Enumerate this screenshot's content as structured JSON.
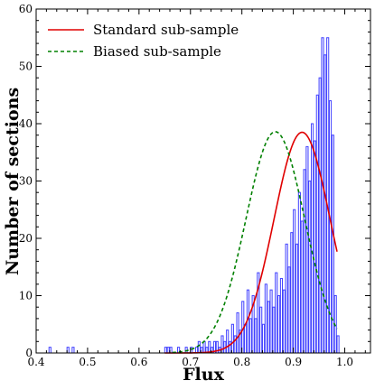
{
  "chart_data": {
    "type": "line",
    "title": "",
    "xlabel": "Flux",
    "ylabel": "Number of sections",
    "xlim": [
      0.4,
      1.05
    ],
    "ylim": [
      0,
      60
    ],
    "xticks": [
      0.4,
      0.5,
      0.6,
      0.7,
      0.8,
      0.9,
      1.0
    ],
    "xtick_labels": [
      "0.4",
      "0.5",
      "0.6",
      "0.7",
      "0.8",
      "0.9",
      "1.0"
    ],
    "yticks": [
      0,
      10,
      20,
      30,
      40,
      50,
      60
    ],
    "ytick_labels": [
      "0",
      "10",
      "20",
      "30",
      "40",
      "50",
      "60"
    ],
    "grid": false,
    "legend_position": "top-left",
    "legend": [
      {
        "label": "Standard sub-sample",
        "color": "#e00000",
        "style": "solid"
      },
      {
        "label": "Biased sub-sample",
        "color": "#008000",
        "style": "dashed"
      }
    ],
    "histogram": {
      "color": "#4040ff",
      "bin_width": 0.00375,
      "bins": [
        [
          0.425,
          1
        ],
        [
          0.46,
          1
        ],
        [
          0.47,
          1
        ],
        [
          0.65,
          1
        ],
        [
          0.655,
          1
        ],
        [
          0.66,
          1
        ],
        [
          0.675,
          1
        ],
        [
          0.69,
          1
        ],
        [
          0.7,
          1
        ],
        [
          0.71,
          1
        ],
        [
          0.715,
          2
        ],
        [
          0.72,
          1
        ],
        [
          0.725,
          2
        ],
        [
          0.73,
          1
        ],
        [
          0.735,
          2
        ],
        [
          0.74,
          1
        ],
        [
          0.745,
          2
        ],
        [
          0.75,
          2
        ],
        [
          0.755,
          1
        ],
        [
          0.76,
          3
        ],
        [
          0.765,
          2
        ],
        [
          0.77,
          4
        ],
        [
          0.775,
          2
        ],
        [
          0.78,
          5
        ],
        [
          0.785,
          3
        ],
        [
          0.79,
          7
        ],
        [
          0.795,
          4
        ],
        [
          0.8,
          9
        ],
        [
          0.805,
          5
        ],
        [
          0.81,
          11
        ],
        [
          0.815,
          6
        ],
        [
          0.82,
          10
        ],
        [
          0.825,
          6
        ],
        [
          0.83,
          14
        ],
        [
          0.835,
          8
        ],
        [
          0.84,
          5
        ],
        [
          0.845,
          12
        ],
        [
          0.85,
          9
        ],
        [
          0.855,
          11
        ],
        [
          0.86,
          8
        ],
        [
          0.865,
          14
        ],
        [
          0.87,
          10
        ],
        [
          0.875,
          13
        ],
        [
          0.88,
          11
        ],
        [
          0.885,
          19
        ],
        [
          0.89,
          15
        ],
        [
          0.895,
          21
        ],
        [
          0.9,
          25
        ],
        [
          0.905,
          19
        ],
        [
          0.91,
          28
        ],
        [
          0.915,
          23
        ],
        [
          0.92,
          32
        ],
        [
          0.925,
          36
        ],
        [
          0.93,
          30
        ],
        [
          0.935,
          40
        ],
        [
          0.94,
          37
        ],
        [
          0.945,
          45
        ],
        [
          0.95,
          48
        ],
        [
          0.955,
          55
        ],
        [
          0.96,
          52
        ],
        [
          0.965,
          55
        ],
        [
          0.97,
          44
        ],
        [
          0.975,
          38
        ],
        [
          0.98,
          10
        ],
        [
          0.985,
          3
        ]
      ]
    },
    "series": [
      {
        "name": "Standard sub-sample",
        "color": "#e00000",
        "style": "solid",
        "type": "gaussian",
        "x_range": [
          0.65,
          0.985
        ],
        "mean": 0.917,
        "sigma": 0.0545,
        "peak": 38.5
      },
      {
        "name": "Biased sub-sample",
        "color": "#008000",
        "style": "dashed",
        "type": "gaussian",
        "x_range": [
          0.665,
          0.985
        ],
        "mean": 0.865,
        "sigma": 0.057,
        "peak": 38.6
      }
    ]
  }
}
